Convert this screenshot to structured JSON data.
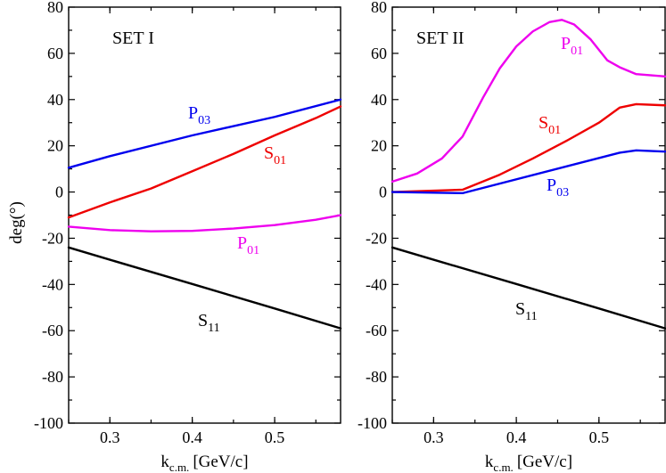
{
  "chart_data": [
    {
      "type": "line",
      "panel_label": "SET I",
      "xlabel": {
        "main": "k",
        "sub": "c.m.",
        "units": "[GeV/c]"
      },
      "ylabel": "deg(°)",
      "xlim": [
        0.25,
        0.58
      ],
      "ylim": [
        -100,
        80
      ],
      "xticks": [
        0.3,
        0.4,
        0.5
      ],
      "yticks": [
        -100,
        -80,
        -60,
        -40,
        -20,
        0,
        20,
        40,
        60,
        80
      ],
      "series": [
        {
          "name": "P03",
          "label_main": "P",
          "label_sub": "03",
          "color": "#0000ee",
          "x": [
            0.25,
            0.3,
            0.4,
            0.5,
            0.58
          ],
          "y": [
            10.5,
            15.5,
            24.5,
            32.5,
            40.0
          ]
        },
        {
          "name": "S01",
          "label_main": "S",
          "label_sub": "01",
          "color": "#ee0000",
          "x": [
            0.25,
            0.3,
            0.35,
            0.4,
            0.45,
            0.5,
            0.55,
            0.58
          ],
          "y": [
            -11.0,
            -4.5,
            1.5,
            9.0,
            16.5,
            24.5,
            32.0,
            37.0
          ]
        },
        {
          "name": "P01",
          "label_main": "P",
          "label_sub": "01",
          "color": "#ee00ee",
          "x": [
            0.25,
            0.3,
            0.35,
            0.4,
            0.45,
            0.5,
            0.55,
            0.58
          ],
          "y": [
            -15.0,
            -16.5,
            -17.0,
            -16.8,
            -15.8,
            -14.3,
            -12.0,
            -10.0
          ]
        },
        {
          "name": "S11",
          "label_main": "S",
          "label_sub": "11",
          "color": "#000000",
          "x": [
            0.25,
            0.3,
            0.4,
            0.5,
            0.58
          ],
          "y": [
            -24.0,
            -29.3,
            -39.8,
            -50.4,
            -59.0
          ]
        }
      ]
    },
    {
      "type": "line",
      "panel_label": "SET II",
      "xlabel": {
        "main": "k",
        "sub": "c.m.",
        "units": "[GeV/c]"
      },
      "ylabel": "",
      "xlim": [
        0.25,
        0.58
      ],
      "ylim": [
        -100,
        80
      ],
      "xticks": [
        0.3,
        0.4,
        0.5
      ],
      "yticks": [
        -100,
        -80,
        -60,
        -40,
        -20,
        0,
        20,
        40,
        60,
        80
      ],
      "series": [
        {
          "name": "P01",
          "label_main": "P",
          "label_sub": "01",
          "color": "#ee00ee",
          "x": [
            0.25,
            0.28,
            0.31,
            0.335,
            0.36,
            0.38,
            0.4,
            0.42,
            0.44,
            0.455,
            0.47,
            0.49,
            0.51,
            0.525,
            0.545,
            0.58
          ],
          "y": [
            4.5,
            8.0,
            14.5,
            24.0,
            41.0,
            53.5,
            63.0,
            69.5,
            73.5,
            74.5,
            72.5,
            66.0,
            57.0,
            54.0,
            51.0,
            50.0
          ]
        },
        {
          "name": "S01",
          "label_main": "S",
          "label_sub": "01",
          "color": "#ee0000",
          "x": [
            0.25,
            0.335,
            0.38,
            0.42,
            0.46,
            0.5,
            0.525,
            0.545,
            0.58
          ],
          "y": [
            0.0,
            1.0,
            7.5,
            14.5,
            22.0,
            30.0,
            36.5,
            38.0,
            37.5
          ]
        },
        {
          "name": "P03",
          "label_main": "P",
          "label_sub": "03",
          "color": "#0000ee",
          "x": [
            0.25,
            0.335,
            0.525,
            0.545,
            0.58
          ],
          "y": [
            0.0,
            -0.5,
            17.0,
            18.0,
            17.5
          ]
        },
        {
          "name": "S11",
          "label_main": "S",
          "label_sub": "11",
          "color": "#000000",
          "x": [
            0.25,
            0.3,
            0.4,
            0.5,
            0.58
          ],
          "y": [
            -24.0,
            -29.3,
            -39.8,
            -50.4,
            -59.0
          ]
        }
      ]
    }
  ]
}
